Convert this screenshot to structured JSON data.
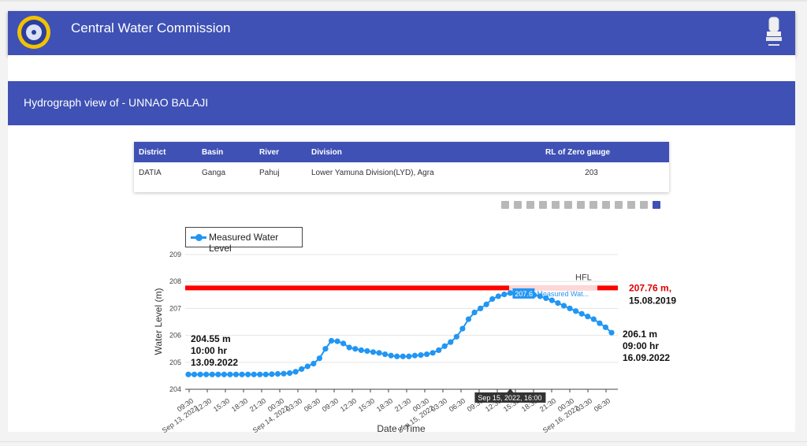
{
  "header": {
    "title": "Central Water Commission",
    "logo_icon": "cwc-logo-icon",
    "emblem_icon": "national-emblem-icon"
  },
  "banner": {
    "title": "Hydrograph view of - UNNAO BALAJI"
  },
  "station_table": {
    "headers": [
      "District",
      "Basin",
      "River",
      "Division",
      "RL of Zero gauge"
    ],
    "row": [
      "DATIA",
      "Ganga",
      "Pahuj",
      "Lower Yamuna Division(LYD), Agra",
      "203"
    ]
  },
  "colors": {
    "brand": "#3f51b5",
    "series": "#2196f3",
    "hfl": "#ff0000"
  },
  "chart_data": {
    "type": "line",
    "xlabel": "Date / Time",
    "ylabel": "Water Level (m)",
    "ylim": [
      204,
      209
    ],
    "yticks": [
      "204",
      "205",
      "206",
      "207",
      "208",
      "209"
    ],
    "legend": {
      "entry": "Measured Water Level",
      "placement": "top-left"
    },
    "xtick_labels": [
      "09:30\nSep 13, 2022",
      "12:30",
      "15:30",
      "18:30",
      "21:30",
      "00:30\nSep 14, 2022",
      "03:30",
      "06:30",
      "09:30",
      "12:30",
      "15:30",
      "18:30",
      "21:30",
      "00:30\nSep 15, 2022",
      "03:30",
      "06:30",
      "09:30",
      "12:30",
      "15:30",
      "18:30",
      "21:30",
      "00:30\nSep 16, 2022",
      "03:30",
      "06:30"
    ],
    "series": [
      {
        "name": "Measured Water Level",
        "x_start": "2022-09-13 10:00",
        "step_hours": 1,
        "values": [
          204.55,
          204.55,
          204.55,
          204.55,
          204.55,
          204.55,
          204.55,
          204.55,
          204.55,
          204.55,
          204.55,
          204.55,
          204.55,
          204.55,
          204.56,
          204.57,
          204.58,
          204.6,
          204.65,
          204.75,
          204.85,
          204.95,
          205.15,
          205.5,
          205.8,
          205.78,
          205.7,
          205.55,
          205.5,
          205.45,
          205.42,
          205.38,
          205.35,
          205.3,
          205.25,
          205.22,
          205.22,
          205.22,
          205.25,
          205.27,
          205.3,
          205.35,
          205.45,
          205.6,
          205.75,
          205.95,
          206.25,
          206.6,
          206.85,
          207.0,
          207.15,
          207.35,
          207.45,
          207.52,
          207.57,
          207.6,
          207.6,
          207.58,
          207.5,
          207.45,
          207.38,
          207.3,
          207.2,
          207.1,
          207.0,
          206.9,
          206.8,
          206.7,
          206.6,
          206.45,
          206.3,
          206.1
        ]
      }
    ],
    "hfl": {
      "label": "HFL",
      "value": 207.76,
      "text_line1": "207.76 m,",
      "text_line2": "15.08.2019"
    },
    "annotations": [
      {
        "lines": [
          "204.55 m",
          "10:00 hr",
          "13.09.2022"
        ]
      },
      {
        "lines": [
          "206.1 m",
          "09:00 hr",
          "16.09.2022"
        ]
      }
    ],
    "hover": {
      "x_label": "Sep 15, 2022, 16:00",
      "value": "207.6",
      "series_label": "Measured Wat..."
    }
  }
}
